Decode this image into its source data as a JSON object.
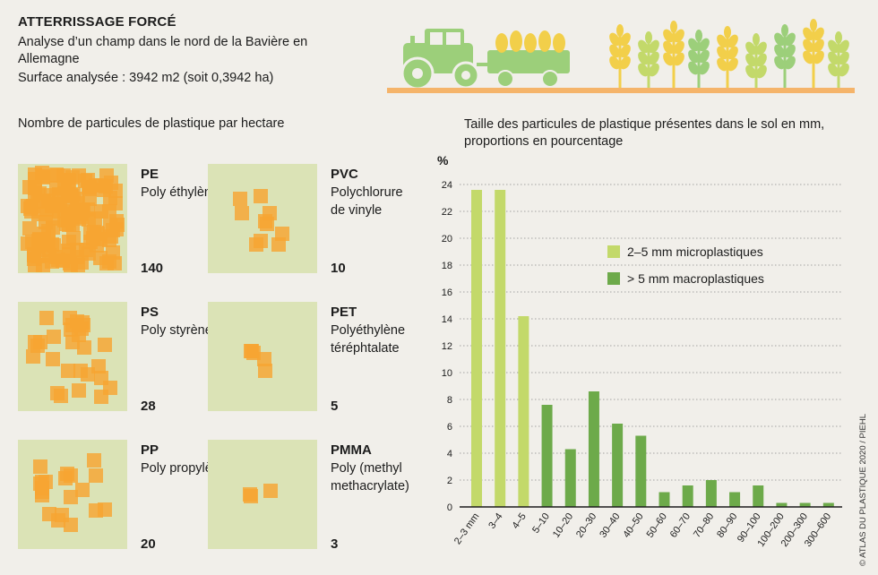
{
  "header": {
    "title": "ATTERRISSAGE FORCÉ",
    "subtitle": "Analyse d’un champ dans le nord de la Bavière en Allemagne",
    "area": "Surface analysée : 3942 m2 (soit 0,3942 ha)"
  },
  "left_heading": "Nombre de particules de plastique par hectare",
  "plastics": [
    {
      "code": "PE",
      "name": "Poly éthylène",
      "count": "140"
    },
    {
      "code": "PVC",
      "name": "Polychlorure de vinyle",
      "count": "10"
    },
    {
      "code": "PS",
      "name": "Poly styrène",
      "count": "28"
    },
    {
      "code": "PET",
      "name": "Polyéthylène téréphtalate",
      "count": "5"
    },
    {
      "code": "PP",
      "name": "Poly propylène",
      "count": "20"
    },
    {
      "code": "PMMA",
      "name": "Poly (methyl methacrylate)",
      "count": "3"
    }
  ],
  "credit": "© ATLAS DU PLASTIQUE 2020 / PIEHL",
  "colors": {
    "micro": "#c3d96a",
    "macro": "#6daa4a",
    "particle": "#f7a532",
    "square_bg": "#dbe3b6",
    "tractor": "#9ccf7a",
    "ground": "#f5b46a",
    "wheat": "#f2cf4a"
  },
  "icons": [
    "tractor-icon",
    "wheat-icon"
  ],
  "chart_data": {
    "type": "bar",
    "title": "Taille des particules de plastique présentes dans le sol en mm, proportions en pourcentage",
    "ylabel": "%",
    "ylim": [
      0,
      24
    ],
    "yticks": [
      "0",
      "2",
      "4",
      "6",
      "8",
      "10",
      "12",
      "14",
      "16",
      "18",
      "20",
      "22",
      "24"
    ],
    "categories": [
      "2–3 mm",
      "3–4",
      "4–5",
      "5–10",
      "10–20",
      "20–30",
      "30–40",
      "40–50",
      "50–60",
      "60–70",
      "70–80",
      "80–90",
      "90–100",
      "100–200",
      "200–300",
      "300–600"
    ],
    "values": [
      23.6,
      23.6,
      14.2,
      7.6,
      4.3,
      8.6,
      6.2,
      5.3,
      1.1,
      1.6,
      2.0,
      1.1,
      1.6,
      0.3,
      0.3,
      0.3
    ],
    "series_class": [
      "micro",
      "micro",
      "micro",
      "macro",
      "macro",
      "macro",
      "macro",
      "macro",
      "macro",
      "macro",
      "macro",
      "macro",
      "macro",
      "macro",
      "macro",
      "macro"
    ],
    "legend": [
      {
        "key": "micro",
        "label": "2–5 mm microplastiques"
      },
      {
        "key": "macro",
        "label": "> 5 mm macroplastiques"
      }
    ],
    "grid": true
  }
}
